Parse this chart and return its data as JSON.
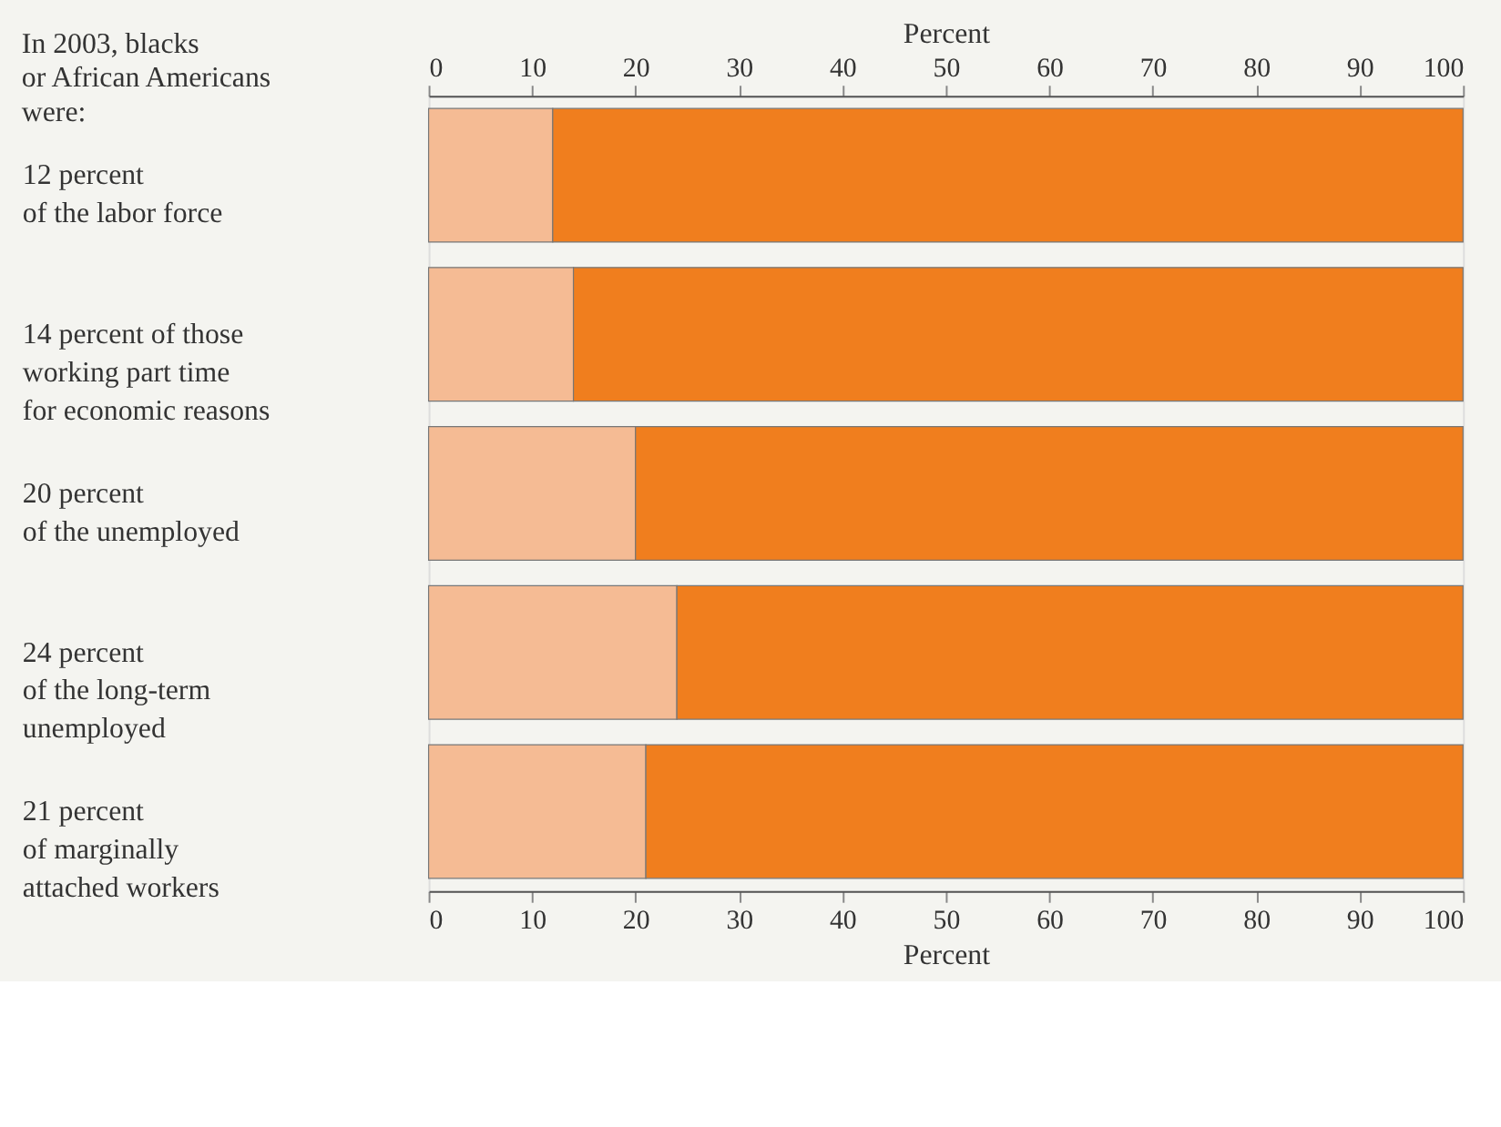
{
  "chart_data": {
    "type": "bar",
    "orientation": "horizontal",
    "stacked": true,
    "ylabel": "In 2003, blacks\nor African Americans\nwere:",
    "xlabel": "Percent",
    "x2label": "Percent",
    "categories": [
      "12 percent\nof the labor force",
      "14 percent of those\nworking part time\nfor economic reasons",
      "20 percent\nof the unemployed",
      "24 percent\nof the long-term\nunemployed",
      "21 percent\nof marginally\nattached workers"
    ],
    "series": [
      {
        "color": "#f5bb94",
        "values": [
          12,
          14,
          20,
          24,
          21
        ]
      },
      {
        "color": "#f07e1e",
        "values": [
          88,
          86,
          80,
          76,
          79
        ]
      }
    ],
    "xlim": [
      0,
      100
    ],
    "xticks": [
      0,
      10,
      20,
      30,
      40,
      50,
      60,
      70,
      80,
      90,
      100
    ],
    "x2lim": [
      0,
      100
    ],
    "x2ticks": [
      0,
      10,
      20,
      30,
      40,
      50,
      60,
      70,
      80,
      90,
      100
    ],
    "grid": false
  }
}
